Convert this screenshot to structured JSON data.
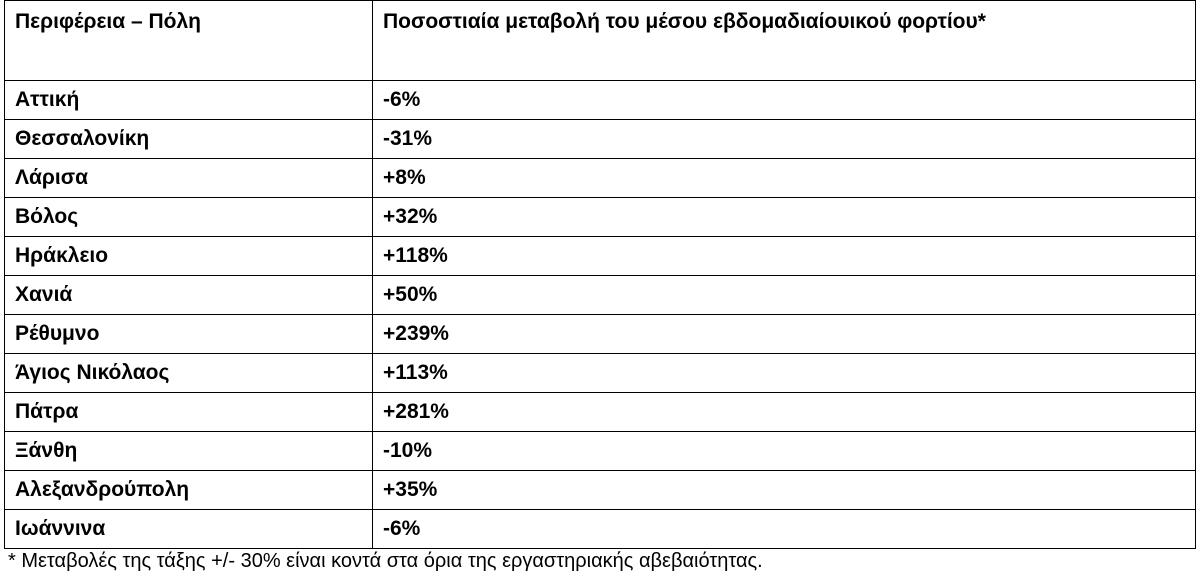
{
  "table": {
    "header": [
      "Περιφέρεια – Πόλη",
      "Ποσοστιαία μεταβολή του μέσου εβδομαδιαίουικού φορτίου*"
    ],
    "rows": [
      [
        "Αττική",
        "-6%"
      ],
      [
        "Θεσσαλονίκη",
        "-31%"
      ],
      [
        "Λάρισα",
        "+8%"
      ],
      [
        "Βόλος",
        "+32%"
      ],
      [
        "Ηράκλειο",
        "+118%"
      ],
      [
        "Χανιά",
        "+50%"
      ],
      [
        "Ρέθυμνο",
        "+239%"
      ],
      [
        "Άγιος Νικόλαος",
        "+113%"
      ],
      [
        "Πάτρα",
        "+281%"
      ],
      [
        "Ξάνθη",
        "-10%"
      ],
      [
        "Αλεξανδρούπολη",
        "+35%"
      ],
      [
        "Ιωάννινα",
        "-6%"
      ]
    ]
  },
  "footnote": "* Μεταβολές της τάξης +/- 30% είναι κοντά στα όρια της εργαστηριακής αβεβαιότητας."
}
